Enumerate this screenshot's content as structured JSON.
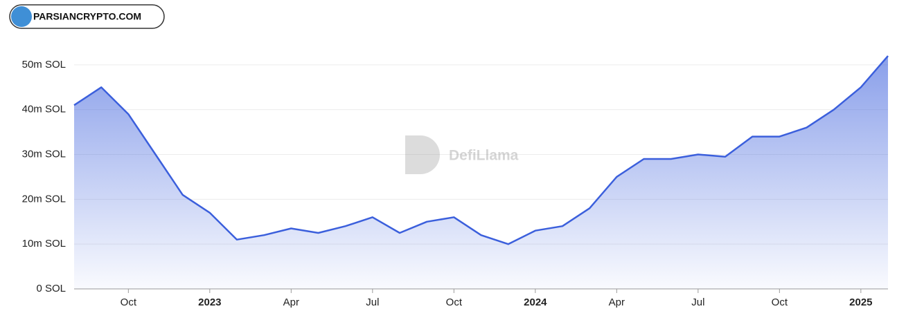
{
  "brand": "PARSIANCRYPTO.COM",
  "watermark": "DefiLlama",
  "chart_data": {
    "type": "area",
    "x": [
      "2022-08",
      "2022-09",
      "2022-10",
      "2022-11",
      "2022-12",
      "2023-01",
      "2023-02",
      "2023-03",
      "2023-04",
      "2023-05",
      "2023-06",
      "2023-07",
      "2023-08",
      "2023-09",
      "2023-10",
      "2023-11",
      "2023-12",
      "2024-01",
      "2024-02",
      "2024-03",
      "2024-04",
      "2024-05",
      "2024-06",
      "2024-07",
      "2024-08",
      "2024-09",
      "2024-10",
      "2024-11",
      "2024-12",
      "2025-01",
      "2025-02"
    ],
    "series": [
      {
        "color": "#3b5fdc",
        "values": [
          41,
          45,
          39,
          30,
          21,
          17,
          11,
          12,
          13.5,
          12.5,
          14,
          16,
          12.5,
          15,
          16,
          12,
          10,
          13,
          14,
          18,
          25,
          29,
          29,
          30,
          29.5,
          34,
          34,
          36,
          40,
          45,
          52
        ]
      }
    ],
    "xlim": [
      "2022-08",
      "2025-02"
    ],
    "xticks": [
      {
        "value": "2022-10",
        "label": "Oct"
      },
      {
        "value": "2023-01",
        "label": "2023"
      },
      {
        "value": "2023-04",
        "label": "Apr"
      },
      {
        "value": "2023-07",
        "label": "Jul"
      },
      {
        "value": "2023-10",
        "label": "Oct"
      },
      {
        "value": "2024-01",
        "label": "2024"
      },
      {
        "value": "2024-04",
        "label": "Apr"
      },
      {
        "value": "2024-07",
        "label": "Jul"
      },
      {
        "value": "2024-10",
        "label": "Oct"
      },
      {
        "value": "2025-01",
        "label": "2025"
      }
    ],
    "ylim": [
      0,
      60
    ],
    "yticks": [
      {
        "value": 0,
        "label": "0 SOL"
      },
      {
        "value": 10,
        "label": "10m SOL"
      },
      {
        "value": 20,
        "label": "20m SOL"
      },
      {
        "value": 30,
        "label": "30m SOL"
      },
      {
        "value": 40,
        "label": "40m SOL"
      },
      {
        "value": 50,
        "label": "50m SOL"
      }
    ],
    "grid": true
  }
}
